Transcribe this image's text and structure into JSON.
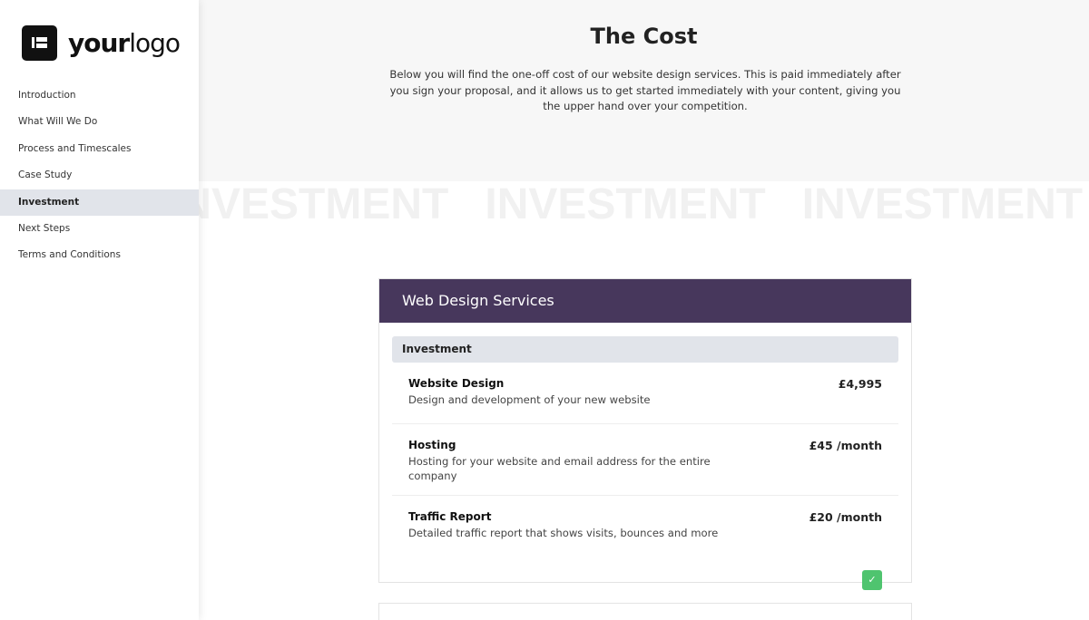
{
  "logo": {
    "bold": "your",
    "light": "logo"
  },
  "nav": [
    {
      "label": "Introduction"
    },
    {
      "label": "What Will We Do"
    },
    {
      "label": "Process and Timescales"
    },
    {
      "label": "Case Study"
    },
    {
      "label": "Investment",
      "active": true
    },
    {
      "label": "Next Steps"
    },
    {
      "label": "Terms and Conditions"
    }
  ],
  "main": {
    "title": "The Cost",
    "intro": "Below you will find the one-off cost of our website design services. This is paid immediately after you sign your proposal, and it allows us to get started immediately with your content, giving you the upper hand over your competition.",
    "watermark": "INVESTMENT   INVESTMENT   INVESTMENT",
    "card": {
      "title": "Web Design Services",
      "section": "Investment",
      "items": [
        {
          "name": "Website Design",
          "desc": "Design and development of your new website",
          "price": "£4,995"
        },
        {
          "name": "Hosting",
          "desc": "Hosting for your website and email address for the entire company",
          "price": "£45 /month"
        },
        {
          "name": "Traffic Report",
          "desc": "Detailed traffic report that shows visits, bounces and more",
          "price": "£20 /month",
          "checked": true
        }
      ]
    }
  },
  "colors": {
    "header": "#47375c",
    "check": "#4fc46f",
    "active_nav": "#e1e4ea"
  }
}
